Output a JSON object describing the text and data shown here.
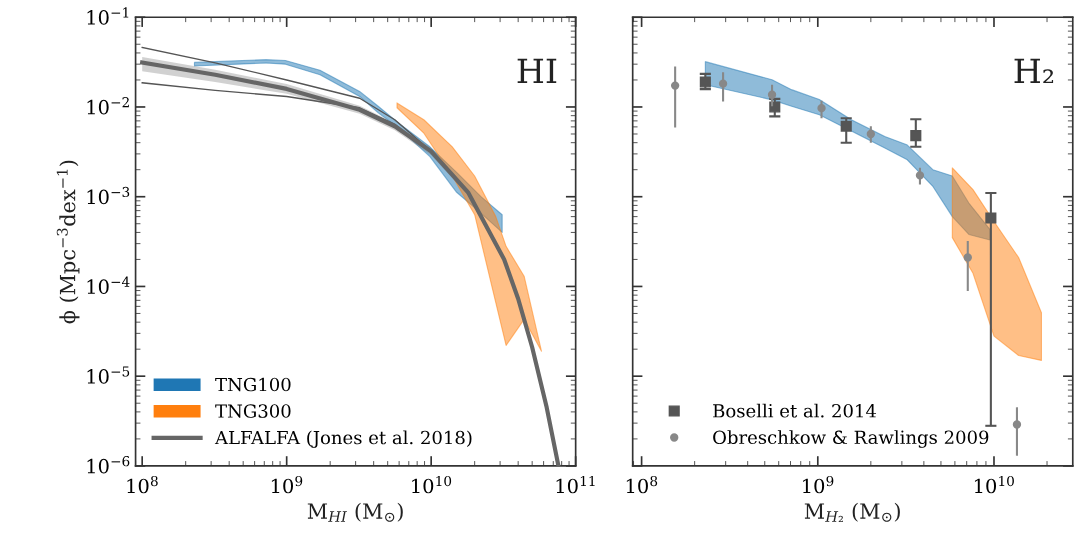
{
  "chart_data": [
    {
      "type": "area",
      "xlabel": "M$_{HI}$ (M$_{⊙}$)",
      "ylabel": "ϕ (Mpc$^{−3}$dex$^{−1}$)",
      "log": "xy",
      "grid": false,
      "legend": "lower left",
      "annotations": [
        "HI"
      ],
      "xlim": [
        90000000.0,
        100000000000.0
      ],
      "xticks": [
        {
          "value": 100000000.0,
          "label": "10$^{8}$"
        },
        {
          "value": 1000000000.0,
          "label": "10$^{9}$"
        },
        {
          "value": 10000000000.0,
          "label": "10$^{10}$"
        },
        {
          "value": 100000000000.0,
          "label": "10$^{11}$"
        }
      ],
      "ylim": [
        1e-06,
        0.1
      ],
      "yticks": [
        {
          "value": 1e-06,
          "label": "10$^{−6}$"
        },
        {
          "value": 1e-05,
          "label": "10$^{−5}$"
        },
        {
          "value": 0.0001,
          "label": "10$^{−4}$"
        },
        {
          "value": 0.001,
          "label": "10$^{−3}$"
        },
        {
          "value": 0.01,
          "label": "10$^{−2}$"
        },
        {
          "value": 0.1,
          "label": "10$^{−1}$"
        }
      ],
      "series": [
        {
          "name": "TNG100",
          "color": "#1f77b4",
          "x": [
            230000000.0,
            720000000.0,
            980000000.0,
            1700000000.0,
            3200000000.0,
            4300000000.0,
            5900000000.0,
            9800000000.0,
            15000000000.0,
            22000000000.0,
            31000000000.0
          ],
          "values": [
            null,
            null,
            null,
            null,
            null,
            null,
            null,
            null,
            null,
            null,
            null
          ],
          "lower": [
            0.0286,
            0.0309,
            0.03,
            0.0229,
            0.0131,
            0.0086,
            0.0059,
            0.0028,
            0.00112,
            0.00066,
            0.0004
          ],
          "upper": [
            0.0314,
            0.0337,
            0.033,
            0.0256,
            0.0149,
            0.0102,
            0.0067,
            0.0036,
            0.00187,
            0.00101,
            0.00063
          ]
        },
        {
          "name": "TNG300",
          "color": "#ff7f0e",
          "x": [
            5800000000.0,
            8900000000.0,
            14000000000.0,
            20000000000.0,
            28000000000.0,
            33000000000.0,
            44000000000.0,
            58000000000.0
          ],
          "values": [
            null,
            null,
            null,
            null,
            null,
            null,
            null,
            null
          ],
          "lower": [
            0.0098,
            0.0051,
            0.0017,
            0.00063,
            6.6e-05,
            2.2e-05,
            4.3e-05,
            1.9e-05
          ],
          "upper": [
            0.0111,
            0.0072,
            0.0036,
            0.0017,
            0.0006,
            0.00028,
            0.00013,
            1.9e-05
          ]
        },
        {
          "type": "line",
          "color": "#555555",
          "x": [
            100000000.0,
            320000000.0,
            1000000000.0,
            3200000000.0,
            5600000000.0,
            10000000000.0
          ],
          "values": [
            0.046,
            0.031,
            0.02,
            0.0125,
            0.0072,
            0.0032
          ]
        },
        {
          "type": "line",
          "color": "#555555",
          "x": [
            100000000.0,
            320000000.0,
            1000000000.0,
            3200000000.0,
            5600000000.0,
            10000000000.0
          ],
          "values": [
            0.0186,
            0.0153,
            0.0131,
            0.0098,
            0.0064,
            0.0031
          ]
        },
        {
          "name": "ALFALFA (Jones et al. 2018)",
          "type": "line",
          "color": "#666666",
          "x": [
            100000000.0,
            320000000.0,
            1000000000.0,
            3200000000.0,
            5600000000.0,
            10000000000.0,
            18000000000.0,
            32000000000.0,
            40000000000.0,
            50000000000.0,
            63000000000.0,
            76000000000.0
          ],
          "values": [
            0.0313,
            0.0229,
            0.0159,
            0.0093,
            0.0061,
            0.0032,
            0.00112,
            0.0002,
            7.3e-05,
            2.1e-05,
            4.5e-06,
            1e-06
          ],
          "lower": [
            0.025,
            0.019,
            0.014,
            0.0084,
            0.0055,
            0.0029,
            0.00104,
            0.00019,
            7e-05,
            2e-05,
            4.3e-06,
            1e-06
          ],
          "upper": [
            0.036,
            0.026,
            0.018,
            0.0103,
            0.0066,
            0.0035,
            0.0012,
            0.00021,
            7.6e-05,
            2.2e-05,
            4.7e-06,
            1.05e-06
          ]
        }
      ]
    },
    {
      "type": "area",
      "xlabel": "M$_{H₂}$ (M$_{⊙}$)",
      "log": "xy",
      "grid": false,
      "legend": "lower left",
      "annotations": [
        "H₂"
      ],
      "tick_labels": "x",
      "xlim": [
        89000000.0,
        28000000000.0
      ],
      "xticks": [
        {
          "value": 100000000.0,
          "label": "10$^{8}$"
        },
        {
          "value": 1000000000.0,
          "label": "10$^{9}$"
        },
        {
          "value": 10000000000.0,
          "label": "10$^{10}$"
        }
      ],
      "ylim": [
        1e-06,
        0.1
      ],
      "yticks": [
        1e-06,
        1e-05,
        0.0001,
        0.001,
        0.01,
        0.1
      ],
      "series": [
        {
          "color": "#1f77b4",
          "x": [
            230000000.0,
            550000000.0,
            710000000.0,
            1020000000.0,
            1550000000.0,
            2400000000.0,
            3200000000.0,
            4500000000.0,
            5800000000.0,
            7200000000.0,
            9500000000.0
          ],
          "values": [
            null,
            null,
            null,
            null,
            null,
            null,
            null,
            null,
            null,
            null,
            null
          ],
          "lower": [
            0.0177,
            0.012,
            0.0102,
            0.0082,
            0.0054,
            0.0035,
            0.0026,
            0.0013,
            0.0006,
            0.00038,
            0.00033
          ],
          "upper": [
            0.032,
            0.0201,
            0.0156,
            0.0121,
            0.0072,
            0.0047,
            0.0038,
            0.002,
            0.0017,
            0.00085,
            0.00043
          ]
        },
        {
          "color": "#ff7f0e",
          "x": [
            5800000000.0,
            7600000000.0,
            10000000000.0,
            13800000000.0,
            18600000000.0
          ],
          "values": [
            null,
            null,
            null,
            null,
            null
          ],
          "lower": [
            0.00035,
            0.00014,
            2.8e-05,
            1.7e-05,
            1.5e-05
          ],
          "upper": [
            0.0021,
            0.0012,
            0.00053,
            0.00021,
            5.1e-05
          ]
        },
        {
          "name": "Boselli et al. 2014",
          "type": "scatter",
          "marker": "square",
          "color": "#555555",
          "x": [
            230000000.0,
            570000000.0,
            1450000000.0,
            3600000000.0,
            9600000000.0
          ],
          "values": [
            0.019,
            0.01,
            0.0061,
            0.0048,
            0.00058
          ],
          "errors": [
            [
              0.0158,
              0.0234
            ],
            [
              0.00786,
              0.0123
            ],
            [
              0.004,
              0.0075
            ],
            [
              0.0036,
              0.0073
            ],
            [
              2.8e-06,
              0.0011
            ]
          ]
        },
        {
          "name": "Obreschkow & Rawlings 2009",
          "type": "scatter",
          "marker": "circle",
          "color": "#888888",
          "x": [
            155000000.0,
            290000000.0,
            550000000.0,
            1050000000.0,
            2000000000.0,
            3800000000.0,
            7100000000.0,
            13500000000.0
          ],
          "values": [
            0.0173,
            0.0182,
            0.0137,
            0.0097,
            0.005,
            0.00173,
            0.00021,
            2.9e-06
          ],
          "errors": [
            [
              0.0059,
              0.0283
            ],
            [
              0.0115,
              0.0243
            ],
            [
              0.0102,
              0.0177
            ],
            [
              0.0075,
              0.0117
            ],
            [
              0.004,
              0.0061
            ],
            [
              0.00137,
              0.0021
            ],
            [
              8.9e-05,
              0.00032
            ],
            [
              1.3e-06,
              4.5e-06
            ]
          ]
        }
      ]
    }
  ]
}
